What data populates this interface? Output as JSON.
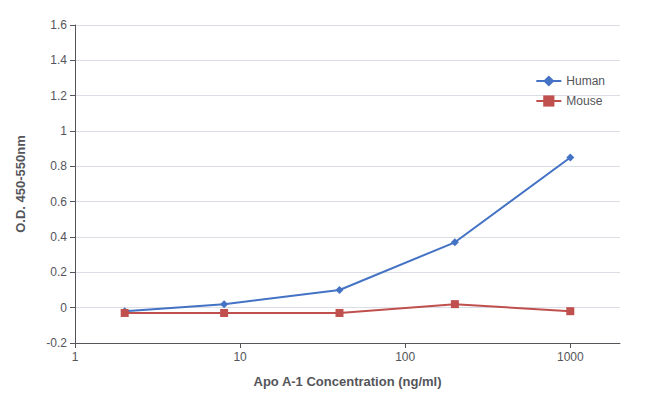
{
  "chart_data": {
    "type": "line",
    "xlabel": "Apo A-1 Concentration (ng/ml)",
    "ylabel": "O.D. 450-550nm",
    "x": [
      2,
      8,
      40,
      200,
      1000
    ],
    "series": [
      {
        "name": "Human",
        "color": "#4472C4",
        "marker": "diamond",
        "values": [
          -0.02,
          0.02,
          0.1,
          0.37,
          0.85
        ]
      },
      {
        "name": "Mouse",
        "color": "#C0504D",
        "marker": "square",
        "values": [
          -0.03,
          -0.03,
          -0.03,
          0.02,
          -0.02
        ]
      }
    ],
    "log": "x",
    "xlim": [
      1,
      2000
    ],
    "xticks": [
      1,
      10,
      100,
      1000
    ],
    "ylim": [
      -0.2,
      1.6
    ],
    "yticks": [
      -0.2,
      0,
      0.2,
      0.4,
      0.6,
      0.8,
      1,
      1.2,
      1.4,
      1.6
    ],
    "grid": true,
    "legend": "right"
  }
}
